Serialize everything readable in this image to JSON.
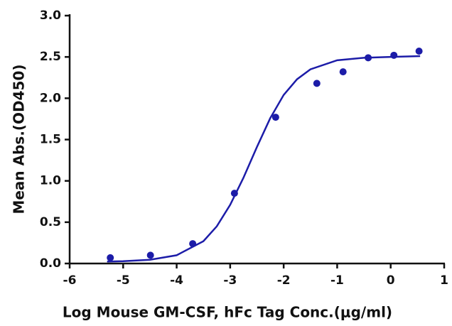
{
  "chart_data": {
    "type": "scatter",
    "x_label": "Log Mouse GM-CSF, hFc Tag Conc.(μg/ml)",
    "y_label": "Mean Abs.(OD450)",
    "xlim": [
      -6,
      1
    ],
    "xticks": [
      -6,
      -5,
      -4,
      -3,
      -2,
      -1,
      0,
      1
    ],
    "ylim": [
      0,
      3
    ],
    "yticks": [
      {
        "value": 0,
        "label": "0.0"
      },
      {
        "value": 0.5,
        "label": "0.5"
      },
      {
        "value": 1,
        "label": "1.0"
      },
      {
        "value": 1.5,
        "label": "1.5"
      },
      {
        "value": 2,
        "label": "2.0"
      },
      {
        "value": 2.5,
        "label": "2.5"
      },
      {
        "value": 3,
        "label": "3.0"
      }
    ],
    "color": "#1c1ca8",
    "x": [
      -5.24,
      -4.49,
      -3.7,
      -2.92,
      -2.15,
      -1.38,
      -0.89,
      -0.42,
      0.06,
      0.53
    ],
    "values": [
      0.07,
      0.1,
      0.24,
      0.85,
      1.77,
      2.18,
      2.32,
      2.49,
      2.52,
      2.57
    ],
    "fit": {
      "x": [
        -5.3,
        -5.0,
        -4.5,
        -4.0,
        -3.5,
        -3.25,
        -3.0,
        -2.75,
        -2.5,
        -2.25,
        -2.0,
        -1.75,
        -1.5,
        -1.0,
        -0.5,
        0.0,
        0.55
      ],
      "values": [
        0.024,
        0.028,
        0.045,
        0.1,
        0.27,
        0.45,
        0.71,
        1.04,
        1.41,
        1.76,
        2.04,
        2.23,
        2.35,
        2.46,
        2.49,
        2.5,
        2.51
      ]
    }
  }
}
